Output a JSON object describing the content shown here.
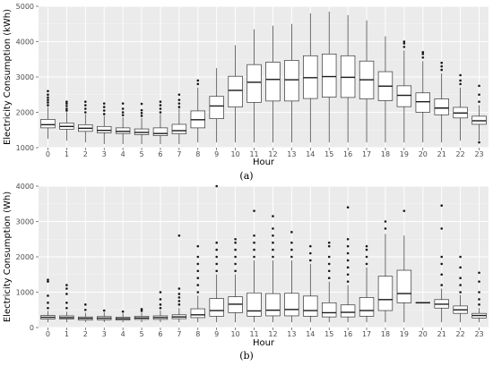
{
  "chart_data": [
    {
      "type": "boxplot",
      "xlabel": "Hour",
      "ylabel": "Electricity Consumption (kWh)",
      "caption": "(a)",
      "ylim": [
        1000,
        5000
      ],
      "yticks": [
        1000,
        2000,
        3000,
        4000,
        5000
      ],
      "categories": [
        "0",
        "1",
        "2",
        "3",
        "4",
        "5",
        "6",
        "7",
        "8",
        "9",
        "10",
        "11",
        "12",
        "13",
        "14",
        "15",
        "16",
        "17",
        "18",
        "19",
        "20",
        "21",
        "22",
        "23"
      ],
      "boxes": [
        {
          "min": 1250,
          "q1": 1560,
          "median": 1650,
          "q3": 1800,
          "max": 2150,
          "outliers": [
            2200,
            2280,
            2350,
            2420,
            2500,
            2600
          ]
        },
        {
          "min": 1200,
          "q1": 1520,
          "median": 1600,
          "q3": 1700,
          "max": 2000,
          "outliers": [
            2050,
            2100,
            2180,
            2250,
            2300
          ]
        },
        {
          "min": 1150,
          "q1": 1460,
          "median": 1550,
          "q3": 1650,
          "max": 1950,
          "outliers": [
            2000,
            2100,
            2200,
            2300
          ]
        },
        {
          "min": 1100,
          "q1": 1420,
          "median": 1490,
          "q3": 1600,
          "max": 1900,
          "outliers": [
            1950,
            2050,
            2150,
            2250
          ]
        },
        {
          "min": 1100,
          "q1": 1400,
          "median": 1460,
          "q3": 1560,
          "max": 1860,
          "outliers": [
            1920,
            2000,
            2100,
            2250
          ]
        },
        {
          "min": 1100,
          "q1": 1370,
          "median": 1430,
          "q3": 1530,
          "max": 1840,
          "outliers": [
            1900,
            1980,
            2060,
            2240
          ]
        },
        {
          "min": 1100,
          "q1": 1340,
          "median": 1400,
          "q3": 1560,
          "max": 1950,
          "outliers": [
            2000,
            2100,
            2200,
            2300
          ]
        },
        {
          "min": 1100,
          "q1": 1390,
          "median": 1480,
          "q3": 1660,
          "max": 2100,
          "outliers": [
            2150,
            2250,
            2350,
            2500
          ]
        },
        {
          "min": 1150,
          "q1": 1560,
          "median": 1790,
          "q3": 2040,
          "max": 2700,
          "outliers": [
            2800,
            2900
          ]
        },
        {
          "min": 1150,
          "q1": 1820,
          "median": 2180,
          "q3": 2450,
          "max": 3250,
          "outliers": []
        },
        {
          "min": 1150,
          "q1": 2150,
          "median": 2620,
          "q3": 3020,
          "max": 3900,
          "outliers": []
        },
        {
          "min": 1150,
          "q1": 2280,
          "median": 2850,
          "q3": 3350,
          "max": 4350,
          "outliers": []
        },
        {
          "min": 1150,
          "q1": 2320,
          "median": 2930,
          "q3": 3420,
          "max": 4450,
          "outliers": []
        },
        {
          "min": 1150,
          "q1": 2320,
          "median": 2920,
          "q3": 3470,
          "max": 4500,
          "outliers": []
        },
        {
          "min": 1150,
          "q1": 2390,
          "median": 2980,
          "q3": 3600,
          "max": 4800,
          "outliers": []
        },
        {
          "min": 1150,
          "q1": 2430,
          "median": 3010,
          "q3": 3650,
          "max": 4850,
          "outliers": []
        },
        {
          "min": 1150,
          "q1": 2420,
          "median": 2990,
          "q3": 3600,
          "max": 4750,
          "outliers": []
        },
        {
          "min": 1150,
          "q1": 2380,
          "median": 2920,
          "q3": 3450,
          "max": 4600,
          "outliers": []
        },
        {
          "min": 1150,
          "q1": 2330,
          "median": 2740,
          "q3": 3150,
          "max": 4150,
          "outliers": []
        },
        {
          "min": 1150,
          "q1": 2160,
          "median": 2480,
          "q3": 2750,
          "max": 3750,
          "outliers": [
            3850,
            3950,
            4000
          ]
        },
        {
          "min": 1150,
          "q1": 2000,
          "median": 2300,
          "q3": 2550,
          "max": 3450,
          "outliers": [
            3550,
            3650,
            3700
          ]
        },
        {
          "min": 1150,
          "q1": 1930,
          "median": 2120,
          "q3": 2380,
          "max": 3100,
          "outliers": [
            3200,
            3300,
            3400
          ]
        },
        {
          "min": 1200,
          "q1": 1840,
          "median": 1980,
          "q3": 2140,
          "max": 2700,
          "outliers": [
            2800,
            2900,
            3050
          ]
        },
        {
          "min": 1200,
          "q1": 1660,
          "median": 1760,
          "q3": 1890,
          "max": 2200,
          "outliers": [
            1150,
            2300,
            2500,
            2750
          ]
        }
      ]
    },
    {
      "type": "boxplot",
      "xlabel": "Hour",
      "ylabel": "Electricity Consumption (Wh)",
      "caption": "(b)",
      "ylim": [
        0,
        4000
      ],
      "yticks": [
        0,
        1000,
        2000,
        3000,
        4000
      ],
      "categories": [
        "0",
        "1",
        "2",
        "3",
        "4",
        "5",
        "6",
        "7",
        "8",
        "9",
        "10",
        "11",
        "12",
        "13",
        "14",
        "15",
        "16",
        "17",
        "18",
        "19",
        "20",
        "21",
        "22",
        "23"
      ],
      "boxes": [
        {
          "min": 150,
          "q1": 240,
          "median": 290,
          "q3": 340,
          "max": 470,
          "outliers": [
            550,
            700,
            900,
            1300,
            1350
          ]
        },
        {
          "min": 150,
          "q1": 240,
          "median": 280,
          "q3": 330,
          "max": 450,
          "outliers": [
            550,
            700,
            950,
            1100,
            1200
          ]
        },
        {
          "min": 150,
          "q1": 210,
          "median": 260,
          "q3": 300,
          "max": 420,
          "outliers": [
            500,
            650
          ]
        },
        {
          "min": 150,
          "q1": 220,
          "median": 265,
          "q3": 310,
          "max": 430,
          "outliers": [
            480
          ]
        },
        {
          "min": 150,
          "q1": 210,
          "median": 250,
          "q3": 290,
          "max": 400,
          "outliers": [
            450
          ]
        },
        {
          "min": 150,
          "q1": 230,
          "median": 270,
          "q3": 320,
          "max": 420,
          "outliers": [
            470,
            520
          ]
        },
        {
          "min": 150,
          "q1": 230,
          "median": 280,
          "q3": 330,
          "max": 480,
          "outliers": [
            550,
            650,
            800,
            1000
          ]
        },
        {
          "min": 150,
          "q1": 250,
          "median": 300,
          "q3": 360,
          "max": 550,
          "outliers": [
            650,
            750,
            850,
            950,
            1100,
            2600
          ]
        },
        {
          "min": 150,
          "q1": 280,
          "median": 360,
          "q3": 530,
          "max": 900,
          "outliers": [
            1000,
            1200,
            1400,
            1600,
            1800,
            2000,
            2300
          ]
        },
        {
          "min": 150,
          "q1": 320,
          "median": 480,
          "q3": 820,
          "max": 1500,
          "outliers": [
            1600,
            1800,
            2000,
            2200,
            2400,
            4000
          ]
        },
        {
          "min": 150,
          "q1": 420,
          "median": 660,
          "q3": 870,
          "max": 1500,
          "outliers": [
            1600,
            1800,
            2000,
            2200,
            2400,
            2500
          ]
        },
        {
          "min": 150,
          "q1": 320,
          "median": 470,
          "q3": 980,
          "max": 1900,
          "outliers": [
            2000,
            2200,
            2400,
            2600,
            3300
          ]
        },
        {
          "min": 150,
          "q1": 330,
          "median": 490,
          "q3": 960,
          "max": 1900,
          "outliers": [
            2000,
            2200,
            2400,
            2600,
            2800,
            3150
          ]
        },
        {
          "min": 150,
          "q1": 330,
          "median": 510,
          "q3": 970,
          "max": 1900,
          "outliers": [
            2000,
            2200,
            2400,
            2700
          ]
        },
        {
          "min": 150,
          "q1": 320,
          "median": 480,
          "q3": 890,
          "max": 1800,
          "outliers": [
            1900,
            2100,
            2300
          ]
        },
        {
          "min": 150,
          "q1": 300,
          "median": 420,
          "q3": 700,
          "max": 1300,
          "outliers": [
            1400,
            1600,
            1800,
            2000,
            2300,
            2400
          ]
        },
        {
          "min": 150,
          "q1": 300,
          "median": 430,
          "q3": 640,
          "max": 1200,
          "outliers": [
            1300,
            1500,
            1700,
            1900,
            2100,
            2300,
            2500,
            3400
          ]
        },
        {
          "min": 150,
          "q1": 320,
          "median": 480,
          "q3": 850,
          "max": 1700,
          "outliers": [
            1800,
            2000,
            2200,
            2300
          ]
        },
        {
          "min": 150,
          "q1": 480,
          "median": 790,
          "q3": 1450,
          "max": 2650,
          "outliers": [
            2800,
            3000
          ]
        },
        {
          "min": 150,
          "q1": 700,
          "median": 960,
          "q3": 1620,
          "max": 2600,
          "outliers": [
            3300
          ]
        },
        {
          "min": 690,
          "q1": 690,
          "median": 700,
          "q3": 710,
          "max": 710,
          "outliers": []
        },
        {
          "min": 150,
          "q1": 550,
          "median": 660,
          "q3": 790,
          "max": 1100,
          "outliers": [
            1200,
            1500,
            1800,
            2000,
            2800,
            3450
          ]
        },
        {
          "min": 150,
          "q1": 400,
          "median": 500,
          "q3": 610,
          "max": 920,
          "outliers": [
            1000,
            1200,
            1400,
            1700,
            2000
          ]
        },
        {
          "min": 150,
          "q1": 270,
          "median": 340,
          "q3": 400,
          "max": 550,
          "outliers": [
            650,
            800,
            1000,
            1300,
            1550
          ]
        }
      ]
    }
  ]
}
